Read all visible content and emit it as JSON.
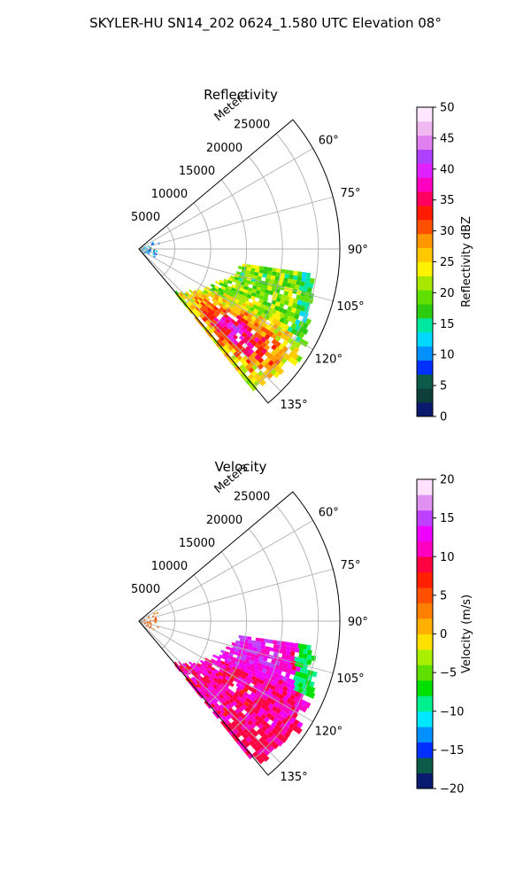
{
  "figure": {
    "suptitle": "SKYLER-HU  SN14_202  0624_1.580 UTC Elevation 08°"
  },
  "chart_data": [
    {
      "type": "heatmap",
      "subtype": "polar-sector",
      "title": "Reflectivity",
      "radial_label": "Meters",
      "r_ticks": [
        5000,
        10000,
        15000,
        20000,
        25000
      ],
      "r_tick_labels": [
        "5000",
        "10000",
        "15000",
        "20000",
        "25000"
      ],
      "rmax": 28000,
      "theta_range_deg": [
        50,
        140
      ],
      "theta_ticks_deg": [
        60,
        75,
        90,
        105,
        120,
        135
      ],
      "theta_tick_labels": [
        "60°",
        "75°",
        "90°",
        "105°",
        "120°",
        "135°"
      ],
      "grid": true,
      "colorbar": {
        "label": "Reflectivity dBZ",
        "range": [
          0,
          50
        ],
        "ticks": [
          0,
          5,
          10,
          15,
          20,
          25,
          30,
          35,
          40,
          45,
          50
        ],
        "tick_labels": [
          "0",
          "5",
          "10",
          "15",
          "20",
          "25",
          "30",
          "35",
          "40",
          "45",
          "50"
        ],
        "colors": [
          "#0a1a6e",
          "#0f3f3a",
          "#0c5a48",
          "#0030ff",
          "#0090ff",
          "#00d8ff",
          "#00e8a0",
          "#2ecc10",
          "#5fe000",
          "#a8e800",
          "#fff200",
          "#ffc800",
          "#ff9800",
          "#ff5000",
          "#ff1a00",
          "#ff0060",
          "#ff00c0",
          "#e020ff",
          "#b040ff",
          "#e080f0",
          "#f0b8f0",
          "#ffe8ff"
        ]
      },
      "echo_region": {
        "theta_deg": [
          98,
          140
        ],
        "r_m": [
          7000,
          26000
        ],
        "value_range": [
          15,
          45
        ]
      }
    },
    {
      "type": "heatmap",
      "subtype": "polar-sector",
      "title": "Velocity",
      "radial_label": "Meters",
      "r_ticks": [
        5000,
        10000,
        15000,
        20000,
        25000
      ],
      "r_tick_labels": [
        "5000",
        "10000",
        "15000",
        "20000",
        "25000"
      ],
      "rmax": 28000,
      "theta_range_deg": [
        50,
        140
      ],
      "theta_ticks_deg": [
        60,
        75,
        90,
        105,
        120,
        135
      ],
      "theta_tick_labels": [
        "60°",
        "75°",
        "90°",
        "105°",
        "120°",
        "135°"
      ],
      "grid": true,
      "colorbar": {
        "label": "Velocity (m/s)",
        "range": [
          -20,
          20
        ],
        "ticks": [
          -20,
          -15,
          -10,
          -5,
          0,
          5,
          10,
          15,
          20
        ],
        "tick_labels": [
          "−20",
          "−15",
          "−10",
          "−5",
          "0",
          "5",
          "10",
          "15",
          "20"
        ],
        "colors": [
          "#0a1a6e",
          "#0c5a48",
          "#0030ff",
          "#0090ff",
          "#00e8ff",
          "#00f090",
          "#00e000",
          "#60e000",
          "#a8f000",
          "#ffe000",
          "#ffb000",
          "#ff8000",
          "#ff5000",
          "#ff2000",
          "#ff0040",
          "#ff00c0",
          "#f000ff",
          "#c040ff",
          "#e090f0",
          "#ffe0ff"
        ]
      },
      "echo_region": {
        "theta_deg": [
          98,
          140
        ],
        "r_m": [
          7000,
          26000
        ],
        "value_range": [
          -12,
          18
        ]
      }
    }
  ]
}
